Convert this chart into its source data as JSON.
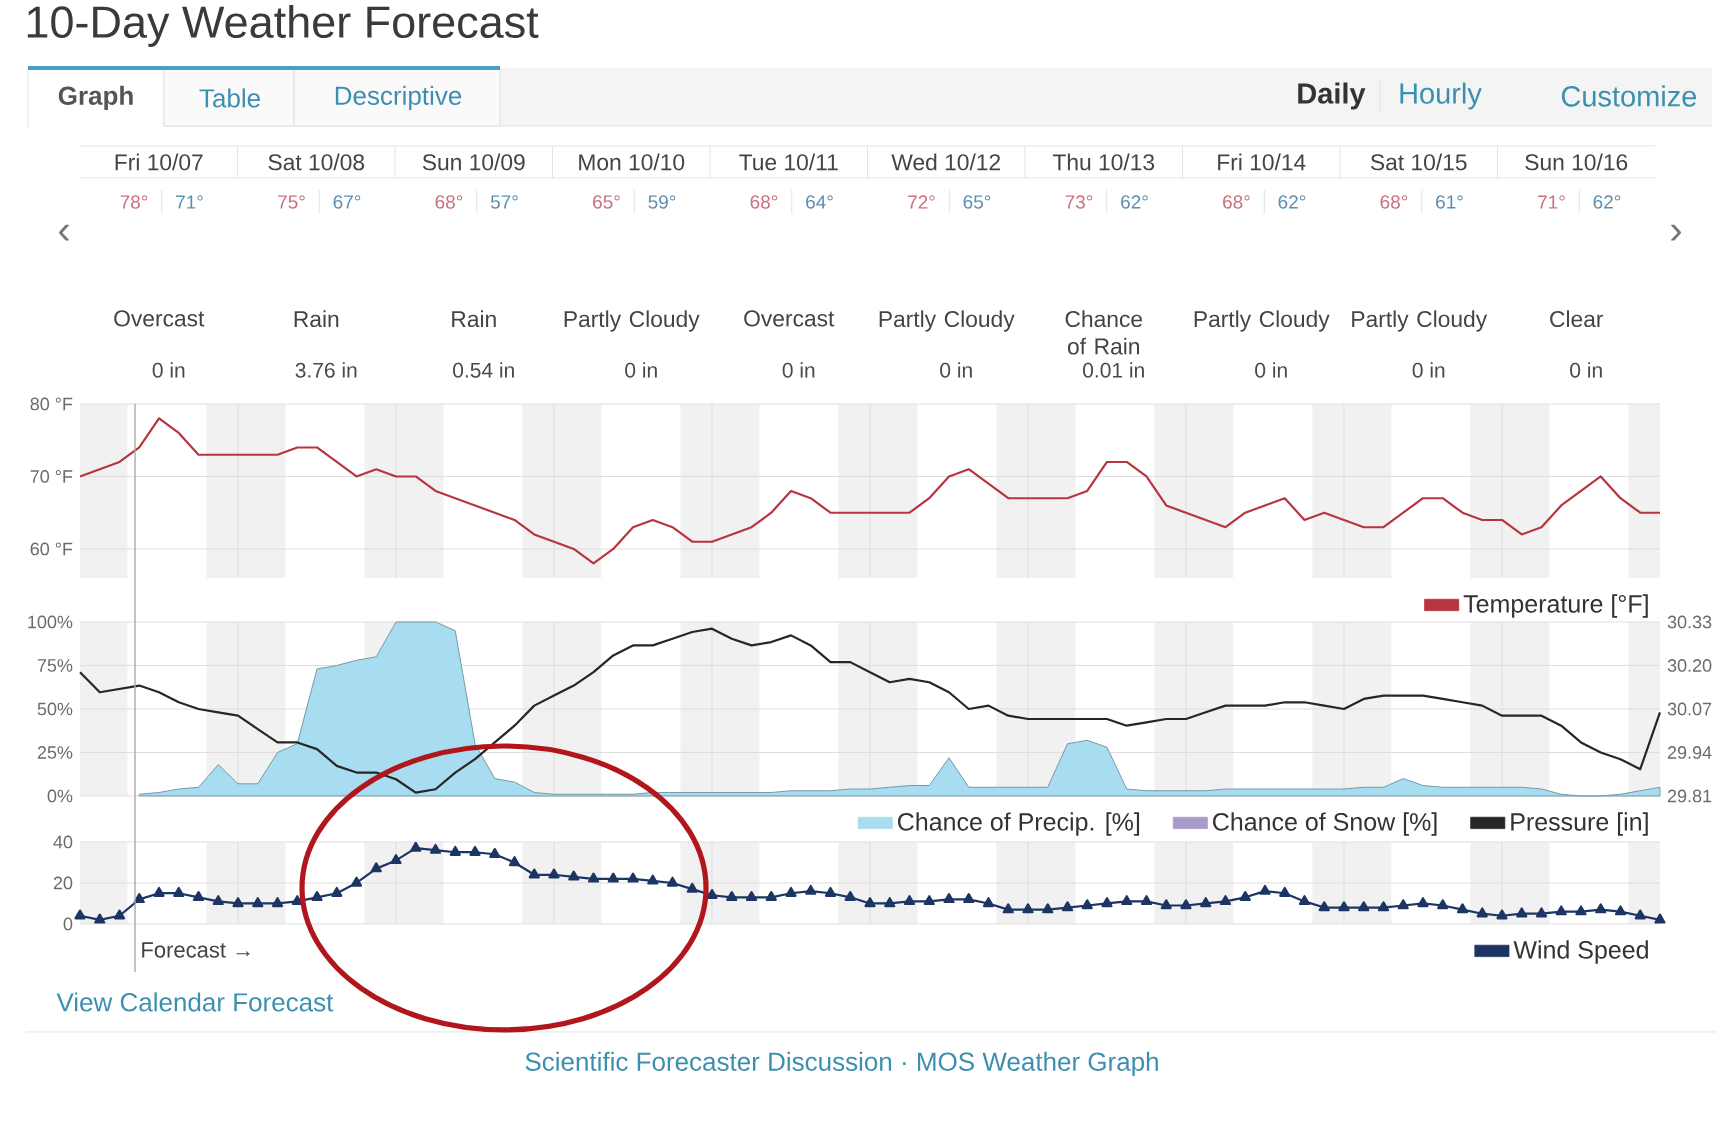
{
  "chart_data": [
    {
      "type": "other",
      "title": "10-Day Weather Forecast",
      "categories": [
        "Fri 10/07",
        "Sat 10/08",
        "Sun 10/09",
        "Mon 10/10",
        "Tue 10/11",
        "Wed 10/12",
        "Thu 10/13",
        "Fri 10/14",
        "Sat 10/15",
        "Sun 10/16"
      ],
      "series": [
        {
          "color": "#c9707d",
          "values": [
            78,
            75,
            68,
            65,
            68,
            72,
            73,
            68,
            68,
            71
          ],
          "value_labels": [
            "78°",
            "75°",
            "68°",
            "65°",
            "68°",
            "72°",
            "73°",
            "68°",
            "68°",
            "71°"
          ]
        },
        {
          "color": "#5b8fb1",
          "values": [
            71,
            67,
            57,
            59,
            64,
            65,
            62,
            62,
            61,
            62
          ],
          "value_labels": [
            "71°",
            "67°",
            "57°",
            "59°",
            "64°",
            "65°",
            "62°",
            "62°",
            "61°",
            "62°"
          ]
        },
        {
          "color": "#4a4a4a",
          "values": [
            0,
            3.76,
            0.54,
            0,
            0,
            0,
            0.01,
            0,
            0,
            0
          ],
          "value_labels": [
            "0 in",
            "3.76 in",
            "0.54 in",
            "0 in",
            "0 in",
            "0 in",
            "0.01 in",
            "0 in",
            "0 in",
            "0 in"
          ]
        }
      ],
      "annotations": [
        "Graph",
        "Table",
        "Descriptive",
        "Daily",
        "Hourly",
        "Customize",
        "‹",
        "›",
        {
          "text": "Overcast",
          "x": "Fri 10/07"
        },
        {
          "text": "Rain",
          "x": "Sat 10/08"
        },
        {
          "text": "Rain",
          "x": "Sun 10/09"
        },
        {
          "text": "Partly Cloudy",
          "x": "Mon 10/10"
        },
        {
          "text": "Overcast",
          "x": "Tue 10/11"
        },
        {
          "text": "Partly Cloudy",
          "x": "Wed 10/12"
        },
        {
          "text": "Chance of Rain",
          "x": "Thu 10/13"
        },
        {
          "text": "Partly Cloudy",
          "x": "Fri 10/14"
        },
        {
          "text": "Partly Cloudy",
          "x": "Sat 10/15"
        },
        {
          "text": "Clear",
          "x": "Sun 10/16"
        }
      ]
    },
    {
      "type": "line",
      "categories": [
        null,
        null,
        null,
        null,
        null,
        null,
        null,
        null,
        null,
        null,
        null,
        null,
        null,
        null,
        null,
        null,
        null,
        null,
        null,
        null,
        null,
        null,
        null,
        null,
        null,
        null,
        null,
        null,
        null,
        null,
        null,
        null,
        null,
        null,
        null,
        null,
        null,
        null,
        null,
        null,
        null,
        null,
        null,
        null,
        null,
        null,
        null,
        null,
        null,
        null,
        null,
        null,
        null,
        null,
        null,
        null,
        null,
        null,
        null,
        null,
        null,
        null,
        null,
        null,
        null,
        null,
        null,
        null,
        null,
        null,
        null,
        null,
        null,
        null,
        null,
        null,
        null,
        null,
        null,
        null,
        null
      ],
      "series": [
        {
          "name": "Temperature [°F]",
          "color": "#b8353f",
          "values": [
            70,
            71,
            72,
            74,
            78,
            76,
            73,
            73,
            73,
            73,
            73,
            74,
            74,
            72,
            70,
            71,
            70,
            70,
            68,
            67,
            66,
            65,
            64,
            62,
            61,
            60,
            58,
            60,
            63,
            64,
            63,
            61,
            61,
            62,
            63,
            65,
            68,
            67,
            65,
            65,
            65,
            65,
            65,
            67,
            70,
            71,
            69,
            67,
            67,
            67,
            67,
            68,
            72,
            72,
            70,
            66,
            65,
            64,
            63,
            65,
            66,
            67,
            64,
            65,
            64,
            63,
            63,
            65,
            67,
            67,
            65,
            64,
            64,
            62,
            63,
            66,
            68,
            70,
            67,
            65,
            65
          ]
        }
      ],
      "ylim": [
        56,
        80
      ],
      "yticks": [
        {
          "value": 60,
          "label": "60 °F"
        },
        {
          "value": 70,
          "label": "70 °F"
        },
        {
          "value": 80,
          "label": "80 °F"
        }
      ],
      "grid": true,
      "legend": "bottom right"
    },
    {
      "type": "area",
      "categories": [
        null,
        null,
        null,
        null,
        null,
        null,
        null,
        null,
        null,
        null,
        null,
        null,
        null,
        null,
        null,
        null,
        null,
        null,
        null,
        null,
        null,
        null,
        null,
        null,
        null,
        null,
        null,
        null,
        null,
        null,
        null,
        null,
        null,
        null,
        null,
        null,
        null,
        null,
        null,
        null,
        null,
        null,
        null,
        null,
        null,
        null,
        null,
        null,
        null,
        null,
        null,
        null,
        null,
        null,
        null,
        null,
        null,
        null,
        null,
        null,
        null,
        null,
        null,
        null,
        null,
        null,
        null,
        null,
        null,
        null,
        null,
        null,
        null,
        null,
        null,
        null,
        null,
        null,
        null,
        null,
        null
      ],
      "series": [
        {
          "name": "Chance of Precip. [%]",
          "type": "area",
          "color": "#a8dcf0",
          "values": [
            null,
            null,
            null,
            1,
            2,
            4,
            5,
            18,
            7,
            7,
            25,
            30,
            73,
            75,
            78,
            80,
            100,
            100,
            100,
            95,
            30,
            10,
            8,
            2,
            1,
            1,
            1,
            1,
            1,
            2,
            2,
            2,
            2,
            2,
            2,
            2,
            3,
            3,
            3,
            4,
            4,
            5,
            6,
            6,
            22,
            5,
            5,
            5,
            5,
            5,
            30,
            32,
            28,
            4,
            3,
            3,
            3,
            3,
            4,
            4,
            4,
            4,
            4,
            4,
            4,
            5,
            5,
            10,
            6,
            5,
            5,
            5,
            5,
            5,
            4,
            1,
            0,
            0,
            1,
            3,
            5
          ]
        },
        {
          "name": "Chance of Snow [%]",
          "type": "area",
          "color": "#a99bc9",
          "values": [
            null,
            null,
            null,
            null,
            null,
            null,
            null,
            null,
            null,
            null,
            null,
            null,
            null,
            null,
            null,
            null,
            null,
            null,
            null,
            null,
            null,
            null,
            null,
            null,
            null,
            null,
            null,
            null,
            null,
            null,
            null,
            null,
            null,
            null,
            null,
            null,
            null,
            null,
            null,
            null,
            null,
            null,
            null,
            null,
            null,
            null,
            null,
            null,
            null,
            null,
            null,
            null,
            null,
            null,
            null,
            null,
            null,
            null,
            null,
            null,
            null,
            null,
            null,
            null,
            null,
            null,
            null,
            null,
            null,
            null,
            null,
            null,
            null,
            null,
            null,
            null,
            null,
            null,
            null,
            null,
            null
          ]
        },
        {
          "name": "Pressure [in]",
          "type": "line",
          "axis": "y2",
          "color": "#262626",
          "values": [
            30.18,
            30.12,
            30.13,
            30.14,
            30.12,
            30.09,
            30.07,
            30.06,
            30.05,
            30.01,
            29.97,
            29.97,
            29.95,
            29.9,
            29.88,
            29.88,
            29.86,
            29.82,
            29.83,
            29.88,
            29.92,
            29.97,
            30.02,
            30.08,
            30.11,
            30.14,
            30.18,
            30.23,
            30.26,
            30.26,
            30.28,
            30.3,
            30.31,
            30.28,
            30.26,
            30.27,
            30.29,
            30.26,
            30.21,
            30.21,
            30.18,
            30.15,
            30.16,
            30.15,
            30.12,
            30.07,
            30.08,
            30.05,
            30.04,
            30.04,
            30.04,
            30.04,
            30.04,
            30.02,
            30.03,
            30.04,
            30.04,
            30.06,
            30.08,
            30.08,
            30.08,
            30.09,
            30.09,
            30.08,
            30.07,
            30.1,
            30.11,
            30.11,
            30.11,
            30.1,
            30.09,
            30.08,
            30.05,
            30.05,
            30.05,
            30.02,
            29.97,
            29.94,
            29.92,
            29.89,
            30.06
          ]
        }
      ],
      "ylim": [
        0,
        100
      ],
      "yticks": [
        {
          "value": 0,
          "label": "0%"
        },
        {
          "value": 25,
          "label": "25%"
        },
        {
          "value": 50,
          "label": "50%"
        },
        {
          "value": 75,
          "label": "75%"
        },
        {
          "value": 100,
          "label": "100%"
        }
      ],
      "y2lim": [
        29.81,
        30.33
      ],
      "y2ticks": [
        29.81,
        29.94,
        30.07,
        {
          "value": 30.2,
          "label": "30.20"
        },
        30.33
      ],
      "grid": true,
      "legend": "bottom right"
    },
    {
      "type": "line",
      "categories": [
        null,
        null,
        null,
        null,
        null,
        null,
        null,
        null,
        null,
        null,
        null,
        null,
        null,
        null,
        null,
        null,
        null,
        null,
        null,
        null,
        null,
        null,
        null,
        null,
        null,
        null,
        null,
        null,
        null,
        null,
        null,
        null,
        null,
        null,
        null,
        null,
        null,
        null,
        null,
        null,
        null,
        null,
        null,
        null,
        null,
        null,
        null,
        null,
        null,
        null,
        null,
        null,
        null,
        null,
        null,
        null,
        null,
        null,
        null,
        null,
        null,
        null,
        null,
        null,
        null,
        null,
        null,
        null,
        null,
        null,
        null,
        null,
        null,
        null,
        null,
        null,
        null,
        null,
        null,
        null,
        null
      ],
      "series": [
        {
          "name": "Wind Speed",
          "color": "#1d3563",
          "values": [
            4,
            2,
            4,
            12,
            15,
            15,
            13,
            11,
            10,
            10,
            10,
            11,
            13,
            15,
            20,
            27,
            31,
            37,
            36,
            35,
            35,
            34,
            30,
            24,
            24,
            23,
            22,
            22,
            22,
            21,
            20,
            17,
            14,
            13,
            13,
            13,
            15,
            16,
            15,
            13,
            10,
            10,
            11,
            11,
            12,
            12,
            10,
            7,
            7,
            7,
            8,
            9,
            10,
            11,
            11,
            9,
            9,
            10,
            11,
            13,
            16,
            15,
            11,
            8,
            8,
            8,
            8,
            9,
            10,
            9,
            7,
            5,
            4,
            5,
            5,
            6,
            6,
            7,
            6,
            4,
            2
          ]
        }
      ],
      "ylim": [
        0,
        40
      ],
      "yticks": [
        0,
        20,
        40
      ],
      "grid": true,
      "marker": "triangle",
      "legend": "bottom right",
      "annotations": [
        "Forecast →",
        "View Calendar Forecast",
        "Scientific Forecaster Discussion · MOS Weather Graph"
      ]
    }
  ]
}
